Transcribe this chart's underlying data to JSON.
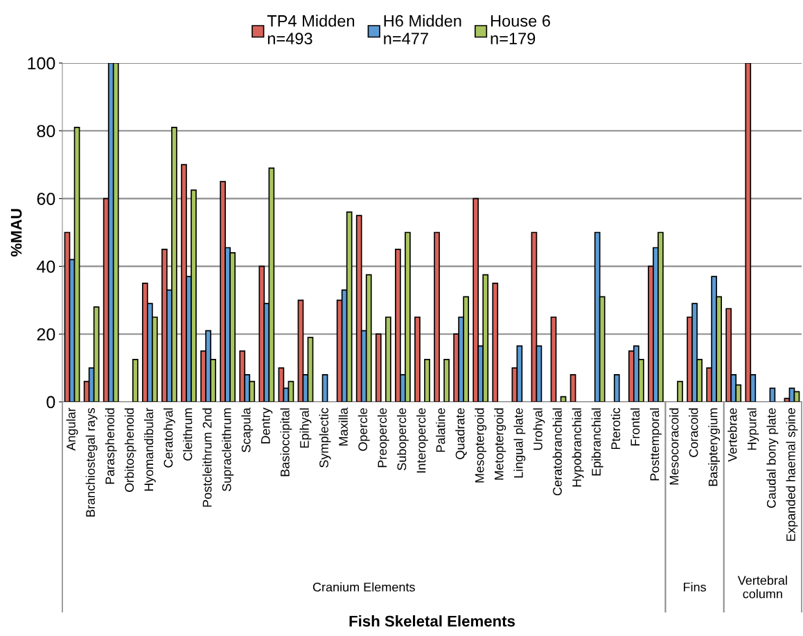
{
  "chart_data": {
    "type": "bar",
    "xlabel": "Fish Skeletal Elements",
    "ylabel": "%MAU",
    "categories": [
      "Angular",
      "Branchiostegal rays",
      "Parasphenoid",
      "Orbitosphenoid",
      "Hyomandibular",
      "Ceratohyal",
      "Cleithrum",
      "Postcleithrum 2nd",
      "Supracleithrum",
      "Scapula",
      "Dentry",
      "Basioccipital",
      "Epihyal",
      "Symplectic",
      "Maxilla",
      "Opercle",
      "Preopercle",
      "Subopercle",
      "Interopercle",
      "Palatine",
      "Quadrate",
      "Mesoptergoid",
      "Metoptergoid",
      "Lingual plate",
      "Urohyal",
      "Ceratobranchial",
      "Hypobranchial",
      "Epibranchial",
      "Pterotic",
      "Frontal",
      "Posttemporal",
      "Mesocoracoid",
      "Coracoid",
      "Basipterygium",
      "Vertebrae",
      "Hypural",
      "Caudal bony plate",
      "Expanded haemal spine"
    ],
    "series": [
      {
        "name": "TP4 Midden\nn=493",
        "color": "#d9635a",
        "values": [
          50,
          6,
          60,
          null,
          35,
          45,
          70,
          15,
          65,
          15,
          40,
          10,
          30,
          null,
          30,
          55,
          20,
          45,
          25,
          50,
          20,
          60,
          35,
          10,
          50,
          25,
          8,
          null,
          null,
          15,
          40,
          null,
          25,
          10,
          27.5,
          100,
          null,
          1
        ]
      },
      {
        "name": "H6 Midden\nn=477",
        "color": "#5b9bd5",
        "values": [
          42,
          10,
          100,
          null,
          29,
          33,
          37,
          21,
          45.5,
          8,
          29,
          4,
          8,
          8,
          33,
          21,
          null,
          8,
          null,
          null,
          25,
          16.5,
          null,
          16.5,
          16.5,
          null,
          null,
          50,
          8,
          16.5,
          45.5,
          null,
          29,
          37,
          8,
          8,
          4,
          4
        ]
      },
      {
        "name": "House 6\nn=179",
        "color": "#a9c55f",
        "values": [
          81,
          28,
          100,
          12.5,
          25,
          81,
          62.5,
          12.5,
          44,
          6,
          69,
          6,
          19,
          null,
          56,
          37.5,
          25,
          50,
          12.5,
          12.5,
          31,
          37.5,
          null,
          null,
          null,
          1.5,
          null,
          31,
          null,
          12.5,
          50,
          6,
          12.5,
          31,
          5,
          null,
          null,
          3
        ]
      }
    ],
    "ylim": [
      0,
      100
    ],
    "yticks": [
      0,
      20,
      40,
      60,
      80,
      100
    ],
    "grid": "y",
    "legend": "top",
    "annotations": [
      "Cranium Elements",
      "Fins",
      "Vertebral\ncolumn"
    ]
  }
}
